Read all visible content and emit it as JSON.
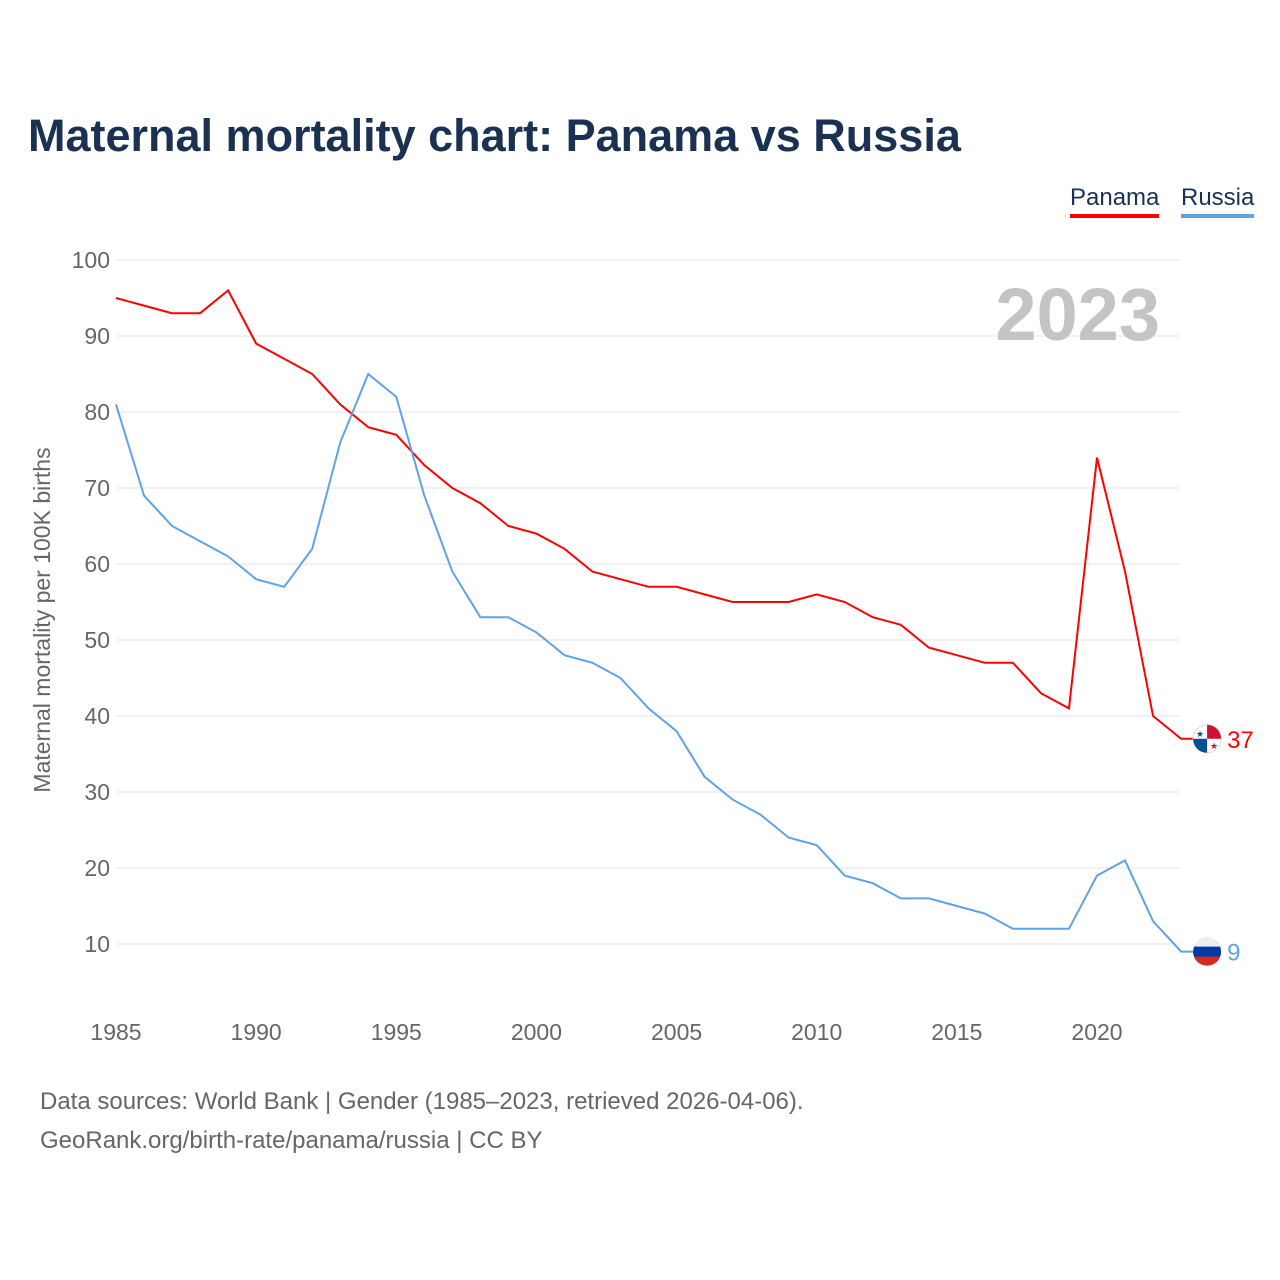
{
  "title": "Maternal mortality chart: Panama vs Russia",
  "footer": {
    "sources": "Data sources: World Bank | Gender (1985–2023, retrieved 2026-04-06).",
    "credit": "GeoRank.org/birth-rate/panama/russia | CC BY"
  },
  "chart_data": {
    "type": "line",
    "title": "Maternal mortality chart: Panama vs Russia",
    "ylabel": "Maternal mortality per 100K births",
    "xlabel": "",
    "year_label": "2023",
    "xlim": [
      1985,
      2023
    ],
    "ylim": [
      0,
      100
    ],
    "yticks": [
      10,
      20,
      30,
      40,
      50,
      60,
      70,
      80,
      90,
      100
    ],
    "xticks": [
      1985,
      1990,
      1995,
      2000,
      2005,
      2010,
      2015,
      2020
    ],
    "grid": true,
    "legend_position": "top-right",
    "x": [
      1985,
      1986,
      1987,
      1988,
      1989,
      1990,
      1991,
      1992,
      1993,
      1994,
      1995,
      1996,
      1997,
      1998,
      1999,
      2000,
      2001,
      2002,
      2003,
      2004,
      2005,
      2006,
      2007,
      2008,
      2009,
      2010,
      2011,
      2012,
      2013,
      2014,
      2015,
      2016,
      2017,
      2018,
      2019,
      2020,
      2021,
      2022,
      2023
    ],
    "series": [
      {
        "name": "Panama",
        "color": "#ff0000",
        "end_label": "37",
        "values": [
          95,
          94,
          93,
          93,
          96,
          89,
          87,
          85,
          81,
          78,
          77,
          73,
          70,
          68,
          65,
          64,
          62,
          59,
          58,
          57,
          57,
          56,
          55,
          55,
          55,
          56,
          55,
          53,
          52,
          49,
          48,
          47,
          47,
          43,
          41,
          74,
          59,
          40,
          37
        ]
      },
      {
        "name": "Russia",
        "color": "#5fa3e6",
        "end_label": "9",
        "values": [
          81,
          69,
          65,
          63,
          61,
          58,
          57,
          62,
          76,
          85,
          82,
          69,
          59,
          53,
          53,
          51,
          48,
          47,
          45,
          41,
          38,
          32,
          29,
          27,
          24,
          23,
          19,
          18,
          16,
          16,
          15,
          14,
          12,
          12,
          12,
          19,
          21,
          13,
          9
        ]
      }
    ]
  }
}
